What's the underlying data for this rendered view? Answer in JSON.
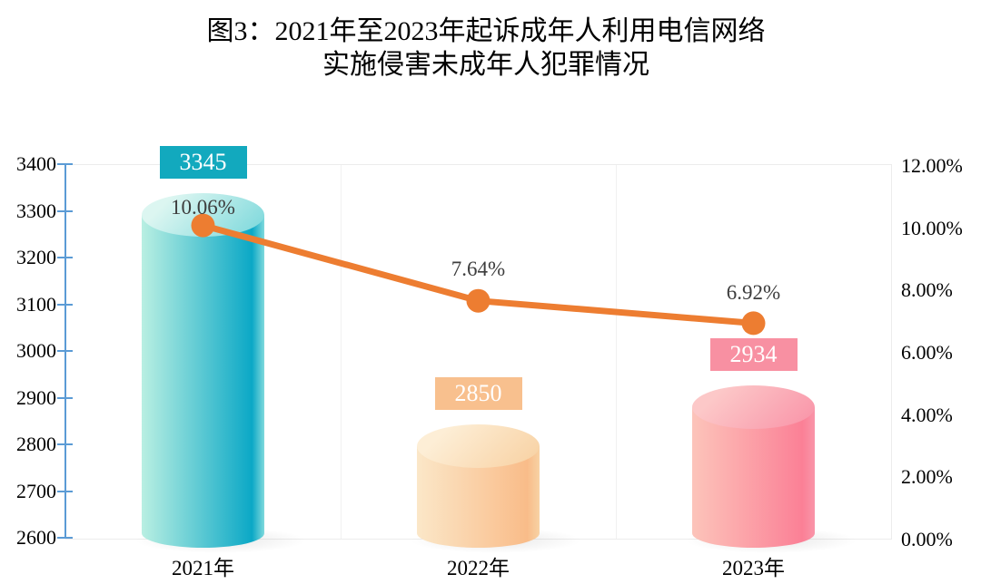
{
  "title": {
    "line1": "图3：2021年至2023年起诉成年人利用电信网络",
    "line2": "实施侵害未成年人犯罪情况"
  },
  "chart_data": {
    "type": "bar",
    "subtype": "3d-cylinder-bars-with-line-overlay",
    "title": "图3：2021年至2023年起诉成年人利用电信网络实施侵害未成年人犯罪情况",
    "categories": [
      "2021年",
      "2022年",
      "2023年"
    ],
    "series": [
      {
        "name": "prosecuted-count-bars",
        "type": "cylinder-bar",
        "axis": "left",
        "values": [
          3345,
          2850,
          2934
        ],
        "data_labels": [
          "3345",
          "2850",
          "2934"
        ]
      },
      {
        "name": "rate-line",
        "type": "line",
        "axis": "right",
        "values_percent": [
          10.06,
          7.64,
          6.92
        ],
        "data_labels": [
          "10.06%",
          "7.64%",
          "6.92%"
        ],
        "color": "#ED7D31"
      }
    ],
    "left_axis": {
      "min": 2600,
      "max": 3400,
      "step": 100,
      "tick_labels": [
        "3400",
        "3300",
        "3200",
        "3100",
        "3000",
        "2900",
        "2800",
        "2700",
        "2600"
      ],
      "axis_color": "#5B9BD5"
    },
    "right_axis": {
      "min_percent": 0,
      "max_percent": 12,
      "step_percent": 2,
      "tick_labels": [
        "12.00%",
        "10.00%",
        "8.00%",
        "6.00%",
        "4.00%",
        "2.00%",
        "0.00%"
      ]
    },
    "bar_styles": [
      {
        "label_box_color": "#12A9BE",
        "body_gradient": [
          "#B9EFE2",
          "#0BA8C6"
        ],
        "top_gradient": [
          "#DCF6F1",
          "#7FD9DC"
        ]
      },
      {
        "label_box_color": "#F8C08E",
        "body_gradient": [
          "#FBE7C8",
          "#F9BC89"
        ],
        "top_gradient": [
          "#FDEED6",
          "#F8D2A4"
        ]
      },
      {
        "label_box_color": "#F890A2",
        "body_gradient": [
          "#FCC4BA",
          "#FB8096"
        ],
        "top_gradient": [
          "#FCC8C8",
          "#F995A9"
        ]
      }
    ],
    "gridline_color": "#F1F1F1",
    "grid": "vertical category separators only; plot border top/right/bottom",
    "legend": "none"
  }
}
